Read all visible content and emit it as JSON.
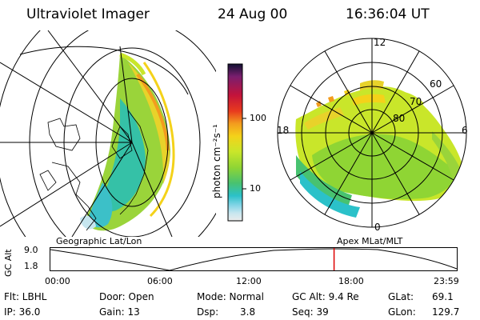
{
  "header": {
    "title": "Ultraviolet Imager",
    "date": "24 Aug 00",
    "time": "16:36:04 UT"
  },
  "colorbar": {
    "unit_label": "photon cm⁻²s⁻¹",
    "ticks": [
      "100",
      "10"
    ],
    "colors": [
      "#111133",
      "#7a1e6e",
      "#c4133a",
      "#e83a1e",
      "#f39c1e",
      "#f4d21a",
      "#c9e62a",
      "#8fd534",
      "#48c270",
      "#2bc1c9",
      "#82d4e6",
      "#c6e6ef",
      "#ececec"
    ]
  },
  "left_map": {
    "caption": "Geographic Lat/Lon"
  },
  "right_map": {
    "caption": "Apex MLat/MLT",
    "mlt_labels": {
      "top": "12",
      "left": "18",
      "right": "6",
      "bottom": "0"
    },
    "lat_labels": [
      "60",
      "70",
      "80"
    ]
  },
  "timeline": {
    "axis_label": "GC Alt",
    "y_ticks": [
      "9.0",
      "1.8"
    ],
    "x_ticks": [
      "00:00",
      "06:00",
      "12:00",
      "18:00",
      "23:59"
    ],
    "current_time_fraction": 0.698
  },
  "info": {
    "filter": "Flt: LBHL",
    "ip": "IP: 36.0",
    "door": "Door: Open",
    "gain": "Gain: 13",
    "mode": "Mode: Normal",
    "dsp_label": "Dsp:",
    "dsp_value": "3.8",
    "gc_alt": "GC Alt: 9.4 Re",
    "seq": "Seq: 39",
    "glat_label": "GLat:",
    "glat_value": "69.1",
    "glon_label": "GLon:",
    "glon_value": "129.7"
  }
}
